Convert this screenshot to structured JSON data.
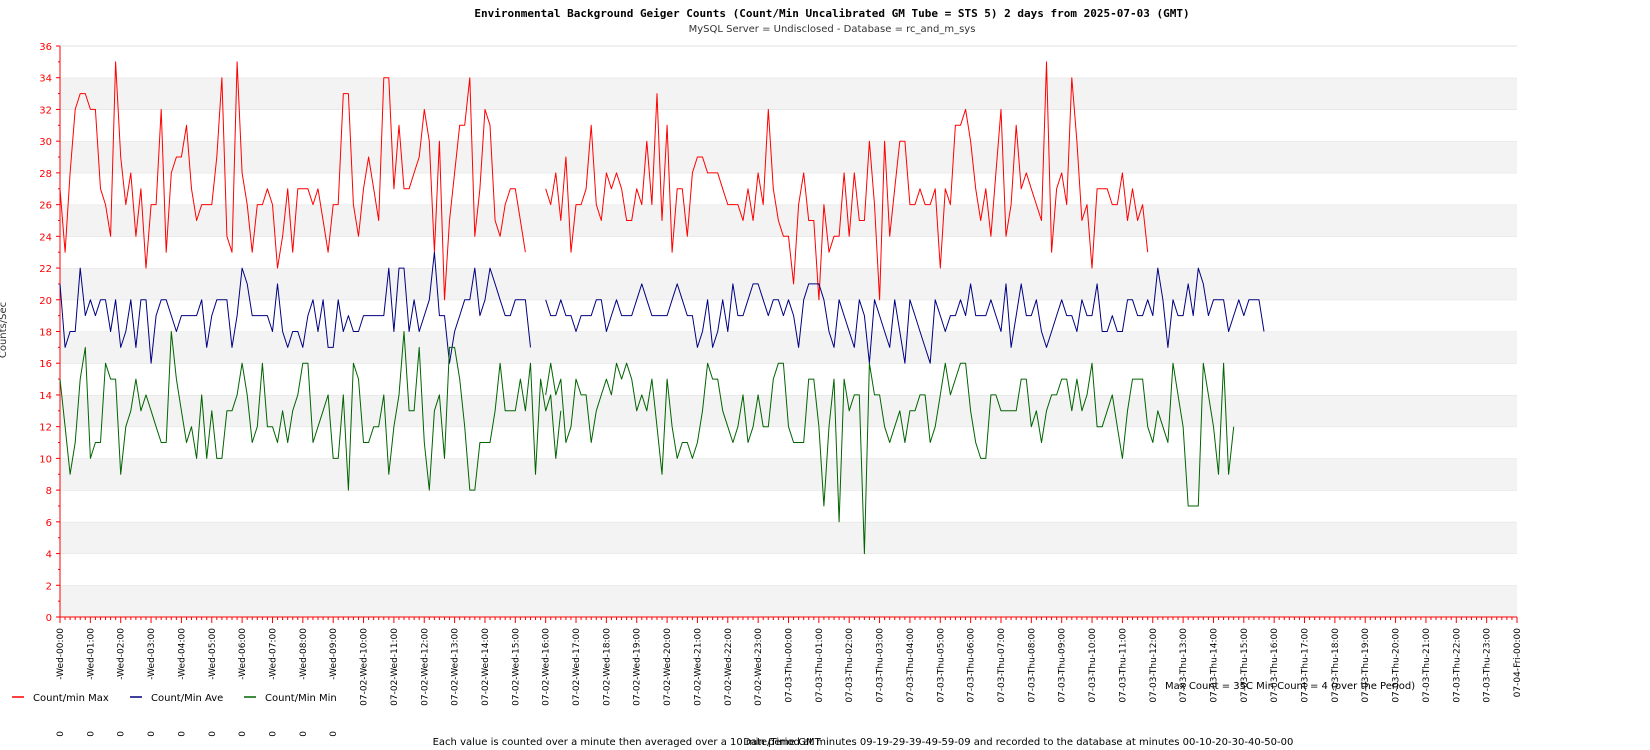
{
  "chart_data": {
    "type": "line",
    "title": "Environmental Background Geiger Counts (Count/Min Uncalibrated GM Tube = STS 5) 2     days from 2025-07-03 (GMT)",
    "subtitle": "MySQL Server = Undisclosed - Database = rc_and_m_sys",
    "ylabel": "Counts/Sec",
    "xlabel": "Date/Time GMT",
    "ylim": [
      0,
      36
    ],
    "yticks": [
      0,
      2,
      4,
      6,
      8,
      10,
      12,
      14,
      16,
      18,
      20,
      22,
      24,
      26,
      28,
      30,
      32,
      34,
      36
    ],
    "grid": "horizontal bands",
    "xticks": [
      "-Wed-00:00",
      "-Wed-01:00",
      "-Wed-02:00",
      "-Wed-03:00",
      "-Wed-04:00",
      "-Wed-05:00",
      "-Wed-06:00",
      "-Wed-07:00",
      "-Wed-08:00",
      "-Wed-09:00",
      "07-02-Wed-10:00",
      "07-02-Wed-11:00",
      "07-02-Wed-12:00",
      "07-02-Wed-13:00",
      "07-02-Wed-14:00",
      "07-02-Wed-15:00",
      "07-02-Wed-16:00",
      "07-02-Wed-17:00",
      "07-02-Wed-18:00",
      "07-02-Wed-19:00",
      "07-02-Wed-20:00",
      "07-02-Wed-21:00",
      "07-02-Wed-22:00",
      "07-02-Wed-23:00",
      "07-03-Thu-00:00",
      "07-03-Thu-01:00",
      "07-03-Thu-02:00",
      "07-03-Thu-03:00",
      "07-03-Thu-04:00",
      "07-03-Thu-05:00",
      "07-03-Thu-06:00",
      "07-03-Thu-07:00",
      "07-03-Thu-08:00",
      "07-03-Thu-09:00",
      "07-03-Thu-10:00",
      "07-03-Thu-11:00",
      "07-03-Thu-12:00",
      "07-03-Thu-13:00",
      "07-03-Thu-14:00",
      "07-03-Thu-15:00",
      "07-03-Thu-16:00",
      "07-03-Thu-17:00",
      "07-03-Thu-18:00",
      "07-03-Thu-19:00",
      "07-03-Thu-20:00",
      "07-03-Thu-21:00",
      "07-03-Thu-22:00",
      "07-03-Thu-23:00",
      "07-04-Fri-00:00"
    ],
    "xticks_prefix_glyph": "0",
    "x_step_note": "values recorded every 10 minutes",
    "series": [
      {
        "name": "Count/min Max",
        "color": "#ff0000",
        "segments": [
          [
            27,
            23,
            28,
            32,
            33,
            33,
            32,
            32,
            27,
            26,
            24,
            35,
            29,
            26,
            28,
            24,
            27,
            22,
            26,
            26,
            32,
            23,
            28,
            29,
            29,
            31,
            27,
            25,
            26,
            26,
            26,
            29,
            34,
            24,
            23,
            35,
            28,
            26,
            23,
            26,
            26,
            27,
            26,
            22,
            24,
            27,
            23,
            27,
            27,
            27,
            26,
            27,
            25,
            23,
            26,
            26,
            33,
            33,
            26,
            24,
            27,
            29,
            27,
            25,
            34,
            34,
            27,
            31,
            27,
            27,
            28,
            29,
            32,
            30,
            23,
            30,
            20,
            25,
            28,
            31,
            31,
            34,
            24,
            27,
            32,
            31,
            25,
            24,
            26,
            27,
            27,
            25,
            23
          ],
          [
            27,
            26,
            28,
            25,
            29,
            23,
            26,
            26,
            27,
            31,
            26,
            25,
            28,
            27,
            28,
            27,
            25,
            25,
            27,
            26,
            30,
            26,
            33,
            25,
            31,
            23,
            27,
            27,
            24,
            28,
            29,
            29,
            28,
            28,
            28,
            27,
            26,
            26,
            26,
            25,
            27,
            25,
            28,
            26,
            32,
            27,
            25,
            24,
            24,
            21,
            26,
            28,
            25,
            25,
            20,
            26,
            23,
            24,
            24,
            28,
            24,
            28,
            25,
            25,
            30,
            26,
            20,
            30,
            24,
            27,
            30,
            30,
            26,
            26,
            27,
            26,
            26,
            27,
            22,
            27,
            26,
            31,
            31,
            32,
            30,
            27,
            25,
            27,
            24,
            28,
            32,
            24,
            26,
            31,
            27,
            28,
            27,
            26,
            25,
            35,
            23,
            27,
            28,
            26,
            34,
            30,
            25,
            26,
            22,
            27,
            27,
            27,
            26,
            26,
            28,
            25,
            27,
            25,
            26,
            23
          ]
        ]
      },
      {
        "name": "Count/Min Ave",
        "color": "#000080",
        "segments": [
          [
            21,
            17,
            18,
            18,
            22,
            19,
            20,
            19,
            20,
            20,
            18,
            20,
            17,
            18,
            20,
            17,
            20,
            20,
            16,
            19,
            20,
            20,
            19,
            18,
            19,
            19,
            19,
            19,
            20,
            17,
            19,
            20,
            20,
            20,
            17,
            19,
            22,
            21,
            19,
            19,
            19,
            19,
            18,
            21,
            18,
            17,
            18,
            18,
            17,
            19,
            20,
            18,
            20,
            17,
            17,
            20,
            18,
            19,
            18,
            18,
            19,
            19,
            19,
            19,
            19,
            22,
            18,
            22,
            22,
            18,
            20,
            18,
            19,
            20,
            23,
            19,
            19,
            16,
            18,
            19,
            20,
            20,
            22,
            19,
            20,
            22,
            21,
            20,
            19,
            19,
            20,
            20,
            20,
            17
          ],
          [
            20,
            19,
            19,
            20,
            19,
            19,
            18,
            19,
            19,
            19,
            20,
            20,
            18,
            19,
            20,
            19,
            19,
            19,
            20,
            21,
            20,
            19,
            19,
            19,
            19,
            20,
            21,
            20,
            19,
            19,
            17,
            18,
            20,
            17,
            18,
            20,
            18,
            21,
            19,
            19,
            20,
            21,
            21,
            20,
            19,
            20,
            20,
            19,
            20,
            19,
            17,
            20,
            21,
            21,
            21,
            20,
            18,
            17,
            20,
            19,
            18,
            17,
            20,
            19,
            16,
            20,
            19,
            18,
            17,
            20,
            18,
            16,
            20,
            19,
            18,
            17,
            16,
            20,
            19,
            18,
            19,
            19,
            20,
            19,
            21,
            19,
            19,
            19,
            20,
            19,
            18,
            21,
            17,
            19,
            21,
            19,
            19,
            20,
            18,
            17,
            18,
            19,
            20,
            19,
            19,
            18,
            20,
            19,
            19,
            21,
            18,
            18,
            19,
            18,
            18,
            20,
            20,
            19,
            19,
            20,
            19,
            22,
            20,
            17,
            20,
            19,
            19,
            21,
            19,
            22,
            21,
            19,
            20,
            20,
            20,
            18,
            19,
            20,
            19,
            20,
            20,
            20,
            18
          ]
        ]
      },
      {
        "name": "Count/Min Min",
        "color": "#006400",
        "segments": [
          [
            15,
            12,
            9,
            11,
            15,
            17,
            10,
            11,
            11,
            16,
            15,
            15,
            9,
            12,
            13,
            15,
            13,
            14,
            13,
            12,
            11,
            11,
            18,
            15,
            13,
            11,
            12,
            10,
            14,
            10,
            13,
            10,
            10,
            13,
            13,
            14,
            16,
            14,
            11,
            12,
            16,
            12,
            12,
            11,
            13,
            11,
            13,
            14,
            16,
            16,
            11,
            12,
            13,
            14,
            10,
            10,
            14,
            8,
            16,
            15,
            11,
            11,
            12,
            12,
            14,
            9,
            12,
            14,
            18,
            13,
            13,
            17,
            11,
            8,
            13,
            14,
            10,
            17,
            17,
            15,
            12,
            8,
            8,
            11,
            11,
            11,
            13,
            16,
            13,
            13,
            13,
            15,
            13,
            16,
            9,
            15,
            13,
            14,
            10,
            13
          ],
          [
            14,
            16,
            14,
            15,
            11,
            12,
            15,
            14,
            14,
            11,
            13,
            14,
            15,
            14,
            16,
            15,
            16,
            15,
            13,
            14,
            13,
            15,
            12,
            9,
            15,
            12,
            10,
            11,
            11,
            10,
            11,
            13,
            16,
            15,
            15,
            13,
            12,
            11,
            12,
            14,
            11,
            12,
            14,
            12,
            12,
            15,
            16,
            16,
            12,
            11,
            11,
            11,
            15,
            15,
            12,
            7,
            12,
            15,
            6,
            15,
            13,
            14,
            14,
            4,
            16,
            14,
            14,
            12,
            11,
            12,
            13,
            11,
            13,
            13,
            14,
            14,
            11,
            12,
            14,
            16,
            14,
            15,
            16,
            16,
            13,
            11,
            10,
            10,
            14,
            14,
            13,
            13,
            13,
            13,
            15,
            15,
            12,
            13,
            11,
            13,
            14,
            14,
            15,
            15,
            13,
            15,
            13,
            14,
            16,
            12,
            12,
            13,
            14,
            12,
            10,
            13,
            15,
            15,
            15,
            12,
            11,
            13,
            12,
            11,
            16,
            14,
            12,
            7,
            7,
            7,
            16,
            14,
            12,
            9,
            16,
            9,
            12
          ]
        ]
      }
    ]
  },
  "legend": [
    {
      "label": "Count/min Max",
      "color": "#ff0000"
    },
    {
      "label": "Count/Min Ave",
      "color": "#000080"
    },
    {
      "label": "Count/Min Min",
      "color": "#006400"
    }
  ],
  "summary": "Max Count = 35C Min Count = 4 (over the Period)",
  "footer": "Each value is counted over a minute then averaged over a 10 min period at minutes 09-19-29-39-49-59-09 and recorded to the database at minutes 00-10-20-30-40-50-00"
}
